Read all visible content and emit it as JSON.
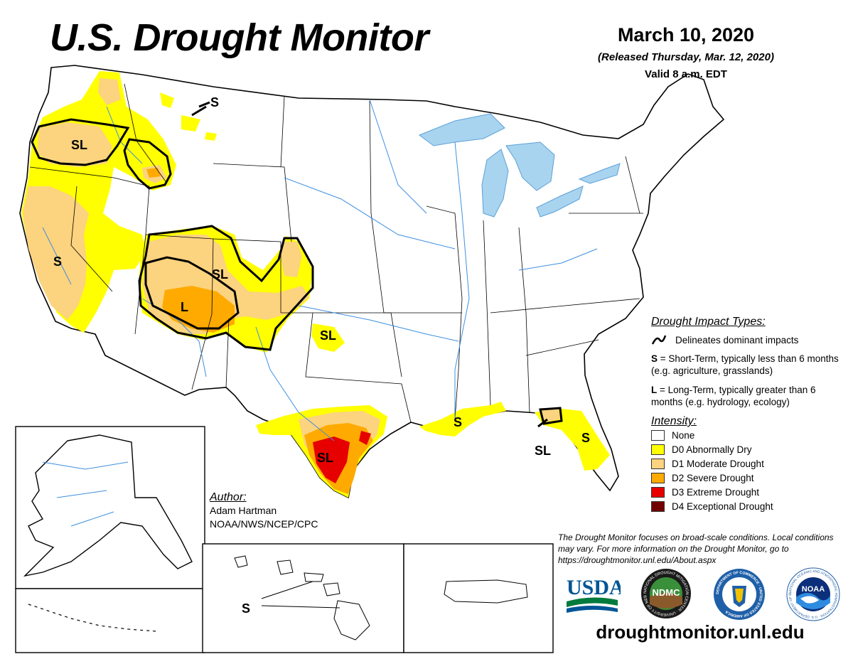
{
  "header": {
    "title": "U.S. Drought Monitor",
    "date": "March 10, 2020",
    "released": "(Released Thursday, Mar. 12, 2020)",
    "valid": "Valid 8 a.m. EDT"
  },
  "legend": {
    "impact_heading": "Drought Impact Types:",
    "delineates": "Delineates dominant impacts",
    "short_term_key": "S",
    "short_term_text": " = Short-Term, typically less than 6 months (e.g. agriculture, grasslands)",
    "long_term_key": "L",
    "long_term_text": " = Long-Term, typically greater than 6 months (e.g. hydrology, ecology)",
    "intensity_heading": "Intensity:",
    "categories": [
      {
        "label": "None",
        "color": "#ffffff"
      },
      {
        "label": "D0 Abnormally Dry",
        "color": "#ffff00"
      },
      {
        "label": "D1 Moderate Drought",
        "color": "#fcd37f"
      },
      {
        "label": "D2 Severe Drought",
        "color": "#ffaa00"
      },
      {
        "label": "D3 Extreme Drought",
        "color": "#e60000"
      },
      {
        "label": "D4 Exceptional Drought",
        "color": "#730000"
      }
    ]
  },
  "map_labels": {
    "oregon": "SL",
    "montana": "S",
    "california": "S",
    "colorado": "SL",
    "utah_arizona": "L",
    "oklahoma": "SL",
    "texas": "SL",
    "louisiana": "S",
    "florida_panhandle": "SL",
    "florida_peninsula": "S",
    "hawaii": "S"
  },
  "author": {
    "heading": "Author:",
    "name": "Adam Hartman",
    "org": "NOAA/NWS/NCEP/CPC"
  },
  "note": "The Drought Monitor focuses on broad-scale conditions. Local conditions may vary. For more information on the Drought Monitor, go to https://droughtmonitor.unl.edu/About.aspx",
  "logos": {
    "usda": "USDA",
    "ndmc": "NDMC",
    "ndmc_ring": "NATIONAL DROUGHT MITIGATION CENTER · UNIVERSITY OF NEBRASKA",
    "commerce_ring": "DEPARTMENT OF COMMERCE · UNITED STATES OF AMERICA",
    "noaa": "NOAA",
    "noaa_ring": "NATIONAL OCEANIC AND ATMOSPHERIC ADMINISTRATION · U.S. DEPARTMENT OF COMMERCE"
  },
  "website": "droughtmonitor.unl.edu"
}
